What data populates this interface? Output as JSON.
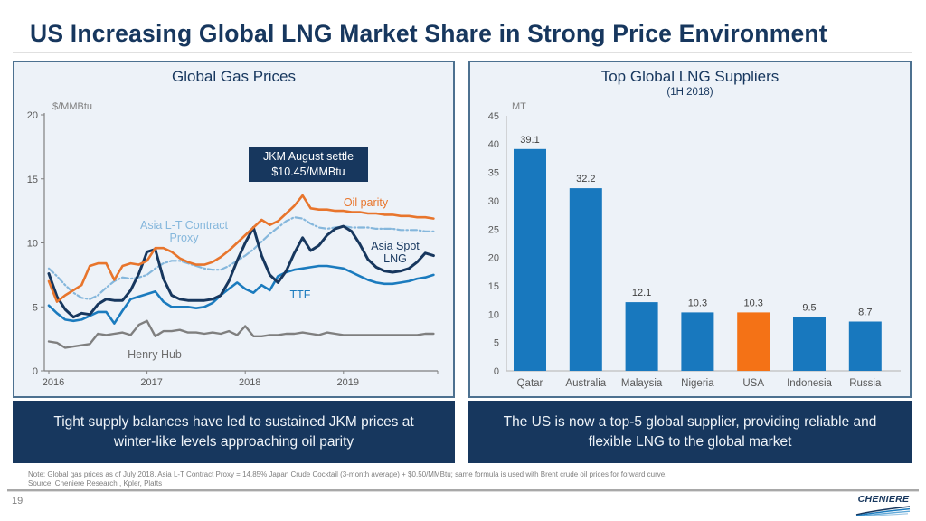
{
  "slide": {
    "title": "US Increasing Global LNG Market Share in Strong Price Environment",
    "page_number": "19",
    "footer_note": "Note: Global gas prices as of July 2018. Asia L-T Contract Proxy = 14.85% Japan Crude Cocktail (3-month average) + $0.50/MMBtu; same formula is used with Brent crude oil prices for forward curve.",
    "footer_source": "Source: Cheniere Research , Kpler, Platts",
    "logo_text": "CHENIERE"
  },
  "left_panel": {
    "title": "Global Gas Prices",
    "callout_line1": "JKM August settle",
    "callout_line2": "$10.45/MMBtu",
    "caption": "Tight supply balances have led to sustained JKM prices at winter-like levels approaching oil parity"
  },
  "right_panel": {
    "title": "Top Global LNG Suppliers",
    "subtitle": "(1H 2018)",
    "caption": "The US is now a top-5 global supplier, providing reliable and flexible LNG to the global market"
  },
  "colors": {
    "navy": "#17375E",
    "oil_parity": "#E8752C",
    "asia_lt_proxy": "#85B7DC",
    "asia_spot": "#17375E",
    "ttf": "#1B7BBE",
    "henry_hub": "#7F7F7F",
    "bar_blue": "#1878BE",
    "bar_orange": "#F47216",
    "panel_bg": "#EDF2F8",
    "panel_border": "#4D7190"
  },
  "chart_data": [
    {
      "type": "line",
      "title": "Global Gas Prices",
      "ylabel": "$/MMBtu",
      "ylim": [
        0,
        20
      ],
      "y_ticks": [
        0,
        5,
        10,
        15,
        20
      ],
      "x_ticks": [
        "2016",
        "2017",
        "2018",
        "2019"
      ],
      "x_note": "monthly values Jan 2016 - Dec 2019, values estimated from plot",
      "annotation": "JKM August settle $10.45/MMBtu",
      "grid": false,
      "legend": "inline labels next to lines",
      "series": [
        {
          "id": "oil-parity",
          "name": "Oil parity",
          "color": "#E8752C",
          "dash": "",
          "values": [
            7.0,
            5.4,
            5.9,
            6.3,
            6.7,
            8.2,
            8.4,
            8.4,
            7.1,
            8.2,
            8.4,
            8.3,
            8.6,
            9.6,
            9.6,
            9.3,
            8.8,
            8.5,
            8.3,
            8.3,
            8.5,
            8.9,
            9.4,
            10.0,
            10.6,
            11.2,
            11.8,
            11.4,
            11.7,
            12.3,
            12.9,
            13.7,
            12.7,
            12.6,
            12.6,
            12.5,
            12.5,
            12.4,
            12.4,
            12.3,
            12.3,
            12.2,
            12.2,
            12.1,
            12.1,
            12.0,
            12.0,
            11.9
          ]
        },
        {
          "id": "asia-lt-contract-proxy",
          "name": "Asia L-T Contract Proxy",
          "color": "#85B7DC",
          "dash": "7 3 1.5 3",
          "values": [
            8.0,
            7.4,
            6.7,
            6.1,
            5.7,
            5.6,
            5.9,
            6.5,
            7.0,
            7.3,
            7.2,
            7.3,
            7.5,
            8.0,
            8.4,
            8.6,
            8.6,
            8.4,
            8.2,
            8.0,
            7.9,
            7.9,
            8.2,
            8.6,
            9.0,
            9.5,
            10.1,
            10.7,
            11.2,
            11.7,
            12.0,
            11.9,
            11.5,
            11.2,
            11.1,
            11.2,
            11.3,
            11.2,
            11.2,
            11.2,
            11.1,
            11.1,
            11.1,
            11.0,
            11.0,
            11.0,
            10.9,
            10.9
          ]
        },
        {
          "id": "asia-spot-lng",
          "name": "Asia Spot LNG",
          "color": "#17375E",
          "dash": "",
          "values": [
            7.6,
            5.8,
            4.8,
            4.2,
            4.5,
            4.4,
            5.2,
            5.6,
            5.5,
            5.5,
            6.3,
            7.6,
            9.3,
            9.5,
            7.2,
            5.9,
            5.6,
            5.5,
            5.5,
            5.5,
            5.6,
            5.9,
            7.0,
            8.6,
            10.0,
            11.2,
            9.0,
            7.5,
            6.9,
            7.8,
            9.2,
            10.4,
            9.4,
            9.8,
            10.6,
            11.1,
            11.3,
            10.9,
            9.9,
            8.7,
            8.1,
            7.8,
            7.7,
            7.8,
            8.0,
            8.5,
            9.2,
            9.0
          ]
        },
        {
          "id": "ttf",
          "name": "TTF",
          "color": "#1B7BBE",
          "dash": "",
          "values": [
            5.1,
            4.5,
            4.0,
            3.9,
            4.0,
            4.3,
            4.6,
            4.6,
            3.7,
            4.7,
            5.6,
            5.8,
            6.0,
            6.2,
            5.4,
            5.0,
            5.0,
            5.0,
            4.9,
            5.0,
            5.3,
            5.9,
            6.4,
            6.9,
            6.4,
            6.1,
            6.7,
            6.3,
            7.4,
            7.7,
            7.9,
            8.0,
            8.1,
            8.2,
            8.2,
            8.1,
            8.0,
            7.7,
            7.4,
            7.1,
            6.9,
            6.8,
            6.8,
            6.9,
            7.0,
            7.2,
            7.3,
            7.5
          ]
        },
        {
          "id": "henry-hub",
          "name": "Henry Hub",
          "color": "#7F7F7F",
          "dash": "",
          "values": [
            2.3,
            2.2,
            1.8,
            1.9,
            2.0,
            2.1,
            2.9,
            2.8,
            2.9,
            3.0,
            2.8,
            3.6,
            3.9,
            2.7,
            3.1,
            3.1,
            3.2,
            3.0,
            3.0,
            2.9,
            3.0,
            2.9,
            3.1,
            2.8,
            3.5,
            2.7,
            2.7,
            2.8,
            2.8,
            2.9,
            2.9,
            3.0,
            2.9,
            2.8,
            3.0,
            2.9,
            2.8,
            2.8,
            2.8,
            2.8,
            2.8,
            2.8,
            2.8,
            2.8,
            2.8,
            2.8,
            2.9,
            2.9
          ]
        }
      ]
    },
    {
      "type": "bar",
      "title": "Top Global LNG Suppliers (1H 2018)",
      "ylabel": "MT",
      "ylim": [
        0,
        45
      ],
      "y_ticks": [
        0,
        5,
        10,
        15,
        20,
        25,
        30,
        35,
        40,
        45
      ],
      "grid": false,
      "categories": [
        "Qatar",
        "Australia",
        "Malaysia",
        "Nigeria",
        "USA",
        "Indonesia",
        "Russia"
      ],
      "values": [
        39.1,
        32.2,
        12.1,
        10.3,
        10.3,
        9.5,
        8.7
      ],
      "bar_color": "#1878BE",
      "highlight_index": 4,
      "highlight_color": "#F47216"
    }
  ]
}
